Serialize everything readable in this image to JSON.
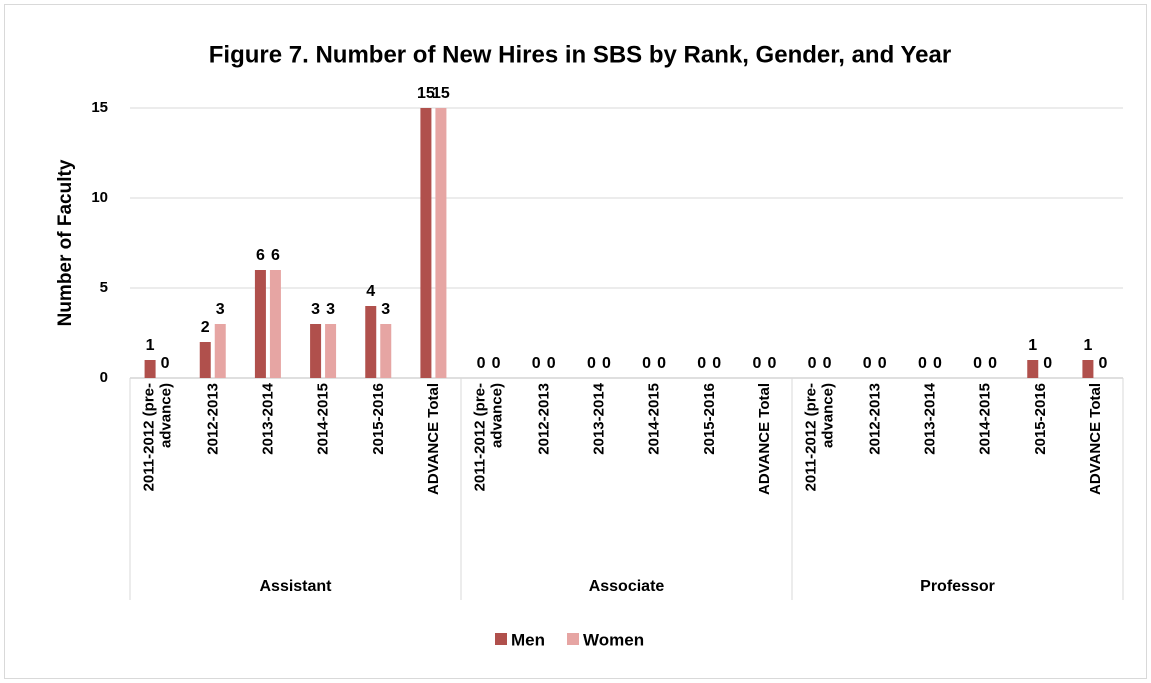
{
  "chart_data": {
    "type": "bar",
    "title": "Figure 7. Number of New Hires in SBS by Rank, Gender, and Year",
    "y_label": "Number of Faculty",
    "categories": [
      "2011-2012 (pre-advance)",
      "2012-2013",
      "2013-2014",
      "2014-2015",
      "2015-2016",
      "ADVANCE Total",
      "2011-2012 (pre-advance)",
      "2012-2013",
      "2013-2014",
      "2014-2015",
      "2015-2016",
      "ADVANCE Total",
      "2011-2012 (pre-advance)",
      "2012-2013",
      "2013-2014",
      "2014-2015",
      "2015-2016",
      "ADVANCE Total"
    ],
    "category_groups": [
      "Assistant",
      "Associate",
      "Professor"
    ],
    "series": [
      {
        "name": "Men",
        "color": "#b0504c",
        "values": [
          1,
          2,
          6,
          3,
          4,
          15,
          0,
          0,
          0,
          0,
          0,
          0,
          0,
          0,
          0,
          0,
          1,
          1
        ]
      },
      {
        "name": "Women",
        "color": "#e6a5a3",
        "values": [
          0,
          3,
          6,
          3,
          3,
          15,
          0,
          0,
          0,
          0,
          0,
          0,
          0,
          0,
          0,
          0,
          0,
          0
        ]
      }
    ],
    "ylim": [
      0,
      15
    ],
    "yticks": [
      0,
      5,
      10,
      15
    ],
    "grid": true,
    "legend": "bottom"
  }
}
